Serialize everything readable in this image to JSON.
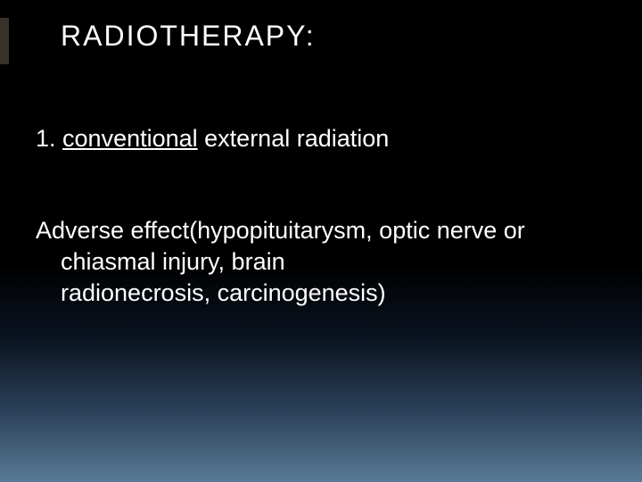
{
  "colors": {
    "title_color": "#ffffff",
    "body_color": "#ffffff",
    "accent_segments": [
      "#3a3228",
      "#3a3228",
      "#3a3228",
      "#3a3228"
    ]
  },
  "title": "RADIOTHERAPY:",
  "title_fontsize": 32,
  "body_fontsize": 27,
  "line1_prefix": "1. ",
  "line1_underlined": "conventional",
  "line1_rest": " external radiation",
  "paragraph_l1": "Adverse effect(hypopituitarysm, optic nerve or",
  "paragraph_l2": "chiasmal injury, brain",
  "paragraph_l3": "radionecrosis, carcinogenesis)"
}
